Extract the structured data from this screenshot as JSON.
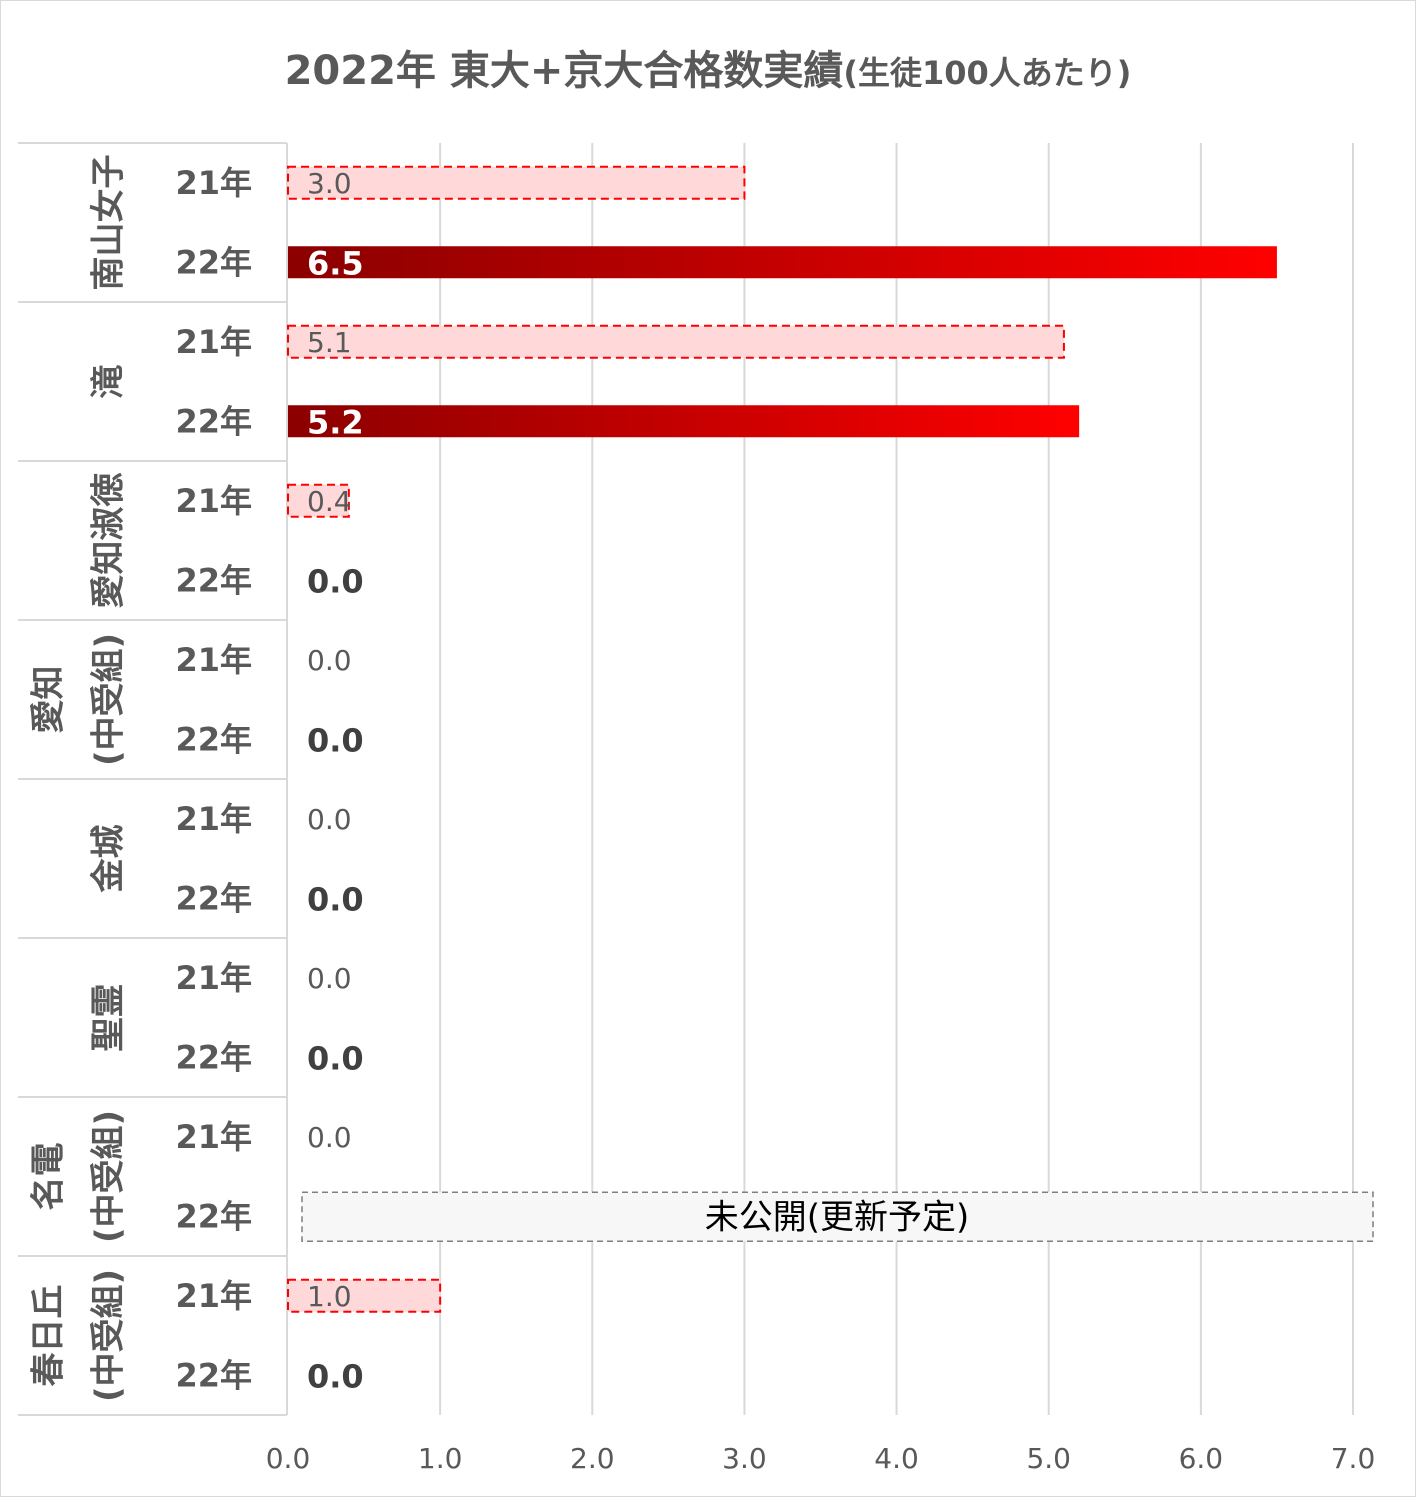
{
  "title": {
    "main": "2022年 東大+京大合格数実績",
    "sub": "(生徒100人あたり)"
  },
  "chart_data": {
    "type": "bar",
    "orientation": "horizontal",
    "xlim": [
      0,
      7
    ],
    "ticks": [
      "0.0",
      "1.0",
      "2.0",
      "3.0",
      "4.0",
      "5.0",
      "6.0",
      "7.0"
    ],
    "grid": true,
    "colors": {
      "y21_fill": "#ffd9d9",
      "y21_border": "#ff0000",
      "y22_start": "#8b0000",
      "y22_end": "#ff0000"
    },
    "groups": [
      {
        "school": [
          "南山女子"
        ],
        "rows": [
          {
            "year": "21年",
            "value": 3.0,
            "label": "3.0"
          },
          {
            "year": "22年",
            "value": 6.5,
            "label": "6.5"
          }
        ]
      },
      {
        "school": [
          "滝"
        ],
        "rows": [
          {
            "year": "21年",
            "value": 5.1,
            "label": "5.1"
          },
          {
            "year": "22年",
            "value": 5.2,
            "label": "5.2"
          }
        ]
      },
      {
        "school": [
          "愛知淑徳"
        ],
        "rows": [
          {
            "year": "21年",
            "value": 0.4,
            "label": "0.4"
          },
          {
            "year": "22年",
            "value": 0.0,
            "label": "0.0"
          }
        ]
      },
      {
        "school": [
          "愛知",
          "(中受組)"
        ],
        "rows": [
          {
            "year": "21年",
            "value": 0.0,
            "label": "0.0"
          },
          {
            "year": "22年",
            "value": 0.0,
            "label": "0.0"
          }
        ]
      },
      {
        "school": [
          "金城"
        ],
        "rows": [
          {
            "year": "21年",
            "value": 0.0,
            "label": "0.0"
          },
          {
            "year": "22年",
            "value": 0.0,
            "label": "0.0"
          }
        ]
      },
      {
        "school": [
          "聖霊"
        ],
        "rows": [
          {
            "year": "21年",
            "value": 0.0,
            "label": "0.0"
          },
          {
            "year": "22年",
            "value": 0.0,
            "label": "0.0"
          }
        ]
      },
      {
        "school": [
          "名電",
          "(中受組)"
        ],
        "rows": [
          {
            "year": "21年",
            "value": 0.0,
            "label": "0.0"
          },
          {
            "year": "22年",
            "value": null,
            "label": "",
            "note": "未公開(更新予定)"
          }
        ]
      },
      {
        "school": [
          "春日丘",
          "(中受組)"
        ],
        "rows": [
          {
            "year": "21年",
            "value": 1.0,
            "label": "1.0"
          },
          {
            "year": "22年",
            "value": 0.0,
            "label": "0.0"
          }
        ]
      }
    ]
  }
}
